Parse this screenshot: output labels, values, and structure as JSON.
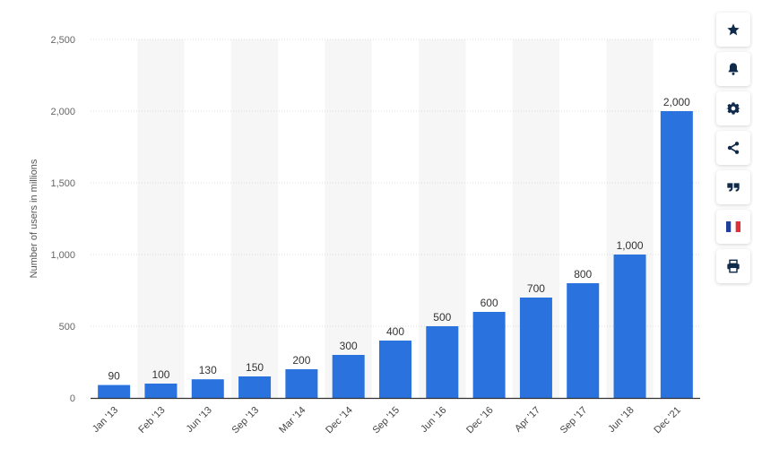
{
  "chart_data": {
    "type": "bar",
    "categories": [
      "Jan '13",
      "Feb '13",
      "Jun '13",
      "Sep '13",
      "Mar '14",
      "Dec '14",
      "Sep '15",
      "Jun '16",
      "Dec '16",
      "Apr '17",
      "Sep '17",
      "Jun '18",
      "Dec '21"
    ],
    "values": [
      90,
      100,
      130,
      150,
      200,
      300,
      400,
      500,
      600,
      700,
      800,
      1000,
      2000
    ],
    "value_labels": [
      "90",
      "100",
      "130",
      "150",
      "200",
      "300",
      "400",
      "500",
      "600",
      "700",
      "800",
      "1,000",
      "2,000"
    ],
    "ylabel": "Number of users in millions",
    "ylim": [
      0,
      2500
    ],
    "yticks": [
      0,
      500,
      1000,
      1500,
      2000,
      2500
    ],
    "ytick_labels": [
      "0",
      "500",
      "1,000",
      "1,500",
      "2,000",
      "2,500"
    ],
    "grid": true,
    "bar_color": "#2a72de",
    "band_color": "#f6f6f6"
  },
  "toolbar": {
    "buttons": [
      {
        "name": "favorite-button",
        "icon": "star-icon"
      },
      {
        "name": "notification-button",
        "icon": "bell-icon"
      },
      {
        "name": "settings-button",
        "icon": "gear-icon"
      },
      {
        "name": "share-button",
        "icon": "share-icon"
      },
      {
        "name": "citation-button",
        "icon": "quote-icon"
      },
      {
        "name": "language-button",
        "icon": "french-flag-icon"
      },
      {
        "name": "print-button",
        "icon": "printer-icon"
      }
    ],
    "icon_color": "#0f2a4a"
  }
}
